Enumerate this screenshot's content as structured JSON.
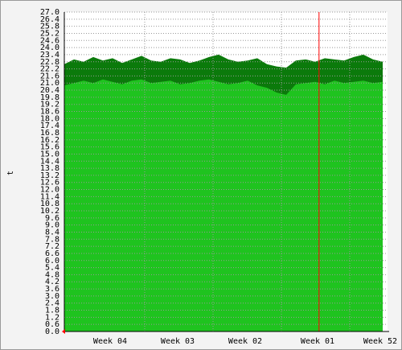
{
  "chart_data": {
    "type": "area-band",
    "y_label": "t",
    "x": [
      0,
      1,
      2,
      3,
      4,
      5,
      6,
      7,
      8,
      9,
      10,
      11,
      12,
      13,
      14,
      15,
      16,
      17,
      18,
      19,
      20,
      21,
      22,
      23,
      24,
      25,
      26,
      27,
      28,
      29,
      30,
      31,
      32,
      33
    ],
    "series": [
      {
        "color": "#0b7a0b",
        "values": [
          22.6,
          23.0,
          22.8,
          23.2,
          22.9,
          23.1,
          22.7,
          23.0,
          23.3,
          22.9,
          22.8,
          23.1,
          23.0,
          22.7,
          22.9,
          23.2,
          23.4,
          23.0,
          22.8,
          22.9,
          23.1,
          22.6,
          22.4,
          22.3,
          22.9,
          23.0,
          22.8,
          23.1,
          23.0,
          22.9,
          23.2,
          23.4,
          23.0,
          22.8
        ]
      },
      {
        "color": "#1fc31f",
        "values": [
          20.8,
          21.0,
          21.2,
          21.0,
          21.3,
          21.1,
          20.9,
          21.2,
          21.3,
          21.0,
          21.1,
          21.2,
          20.9,
          21.0,
          21.2,
          21.3,
          21.1,
          20.9,
          21.0,
          21.2,
          20.8,
          20.6,
          20.2,
          20.0,
          20.9,
          21.0,
          21.1,
          20.9,
          21.2,
          21.0,
          21.1,
          21.2,
          21.0,
          21.1
        ]
      }
    ],
    "marker_x": 26.4,
    "marker_color": "#ff0000",
    "xlim": [
      0,
      33.5
    ],
    "xticks": [
      {
        "value": 4.75,
        "label": "Week 04"
      },
      {
        "value": 11.75,
        "label": "Week 03"
      },
      {
        "value": 18.75,
        "label": "Week 02"
      },
      {
        "value": 26.25,
        "label": "Week 01"
      },
      {
        "value": 32.75,
        "label": "Week 52"
      }
    ],
    "ylim": [
      0,
      27
    ],
    "yticks": [
      {
        "value": 0,
        "label": "0.0"
      },
      {
        "value": 0.6,
        "label": "0.6"
      },
      {
        "value": 1.2,
        "label": "1.2"
      },
      {
        "value": 1.8,
        "label": "1.8"
      },
      {
        "value": 2.4,
        "label": "2.4"
      },
      {
        "value": 3,
        "label": "3.0"
      },
      {
        "value": 3.6,
        "label": "3.6"
      },
      {
        "value": 4.2,
        "label": "4.2"
      },
      {
        "value": 4.8,
        "label": "4.8"
      },
      {
        "value": 5.4,
        "label": "5.4"
      },
      {
        "value": 6,
        "label": "6.0"
      },
      {
        "value": 6.6,
        "label": "6.6"
      },
      {
        "value": 7.2,
        "label": "7.2"
      },
      {
        "value": 7.8,
        "label": "7.8"
      },
      {
        "value": 8.4,
        "label": "8.4"
      },
      {
        "value": 9,
        "label": "9.0"
      },
      {
        "value": 9.6,
        "label": "9.6"
      },
      {
        "value": 10.2,
        "label": "10.2"
      },
      {
        "value": 10.8,
        "label": "10.8"
      },
      {
        "value": 11.4,
        "label": "11.4"
      },
      {
        "value": 12,
        "label": "12.0"
      },
      {
        "value": 12.6,
        "label": "12.6"
      },
      {
        "value": 13.2,
        "label": "13.2"
      },
      {
        "value": 13.8,
        "label": "13.8"
      },
      {
        "value": 14.4,
        "label": "14.4"
      },
      {
        "value": 15,
        "label": "15.0"
      },
      {
        "value": 15.6,
        "label": "15.6"
      },
      {
        "value": 16.2,
        "label": "16.2"
      },
      {
        "value": 16.8,
        "label": "16.8"
      },
      {
        "value": 17.4,
        "label": "17.4"
      },
      {
        "value": 18,
        "label": "18.0"
      },
      {
        "value": 18.6,
        "label": "18.6"
      },
      {
        "value": 19.2,
        "label": "19.2"
      },
      {
        "value": 19.8,
        "label": "19.8"
      },
      {
        "value": 20.4,
        "label": "20.4"
      },
      {
        "value": 21,
        "label": "21.0"
      },
      {
        "value": 21.6,
        "label": "21.6"
      },
      {
        "value": 22.2,
        "label": "22.2"
      },
      {
        "value": 22.8,
        "label": "22.8"
      },
      {
        "value": 23.4,
        "label": "23.4"
      },
      {
        "value": 24,
        "label": "24.0"
      },
      {
        "value": 24.6,
        "label": "24.6"
      },
      {
        "value": 25.2,
        "label": "25.2"
      },
      {
        "value": 25.8,
        "label": "25.8"
      },
      {
        "value": 26.4,
        "label": "26.4"
      },
      {
        "value": 27,
        "label": "27.0"
      }
    ],
    "grid": true
  }
}
